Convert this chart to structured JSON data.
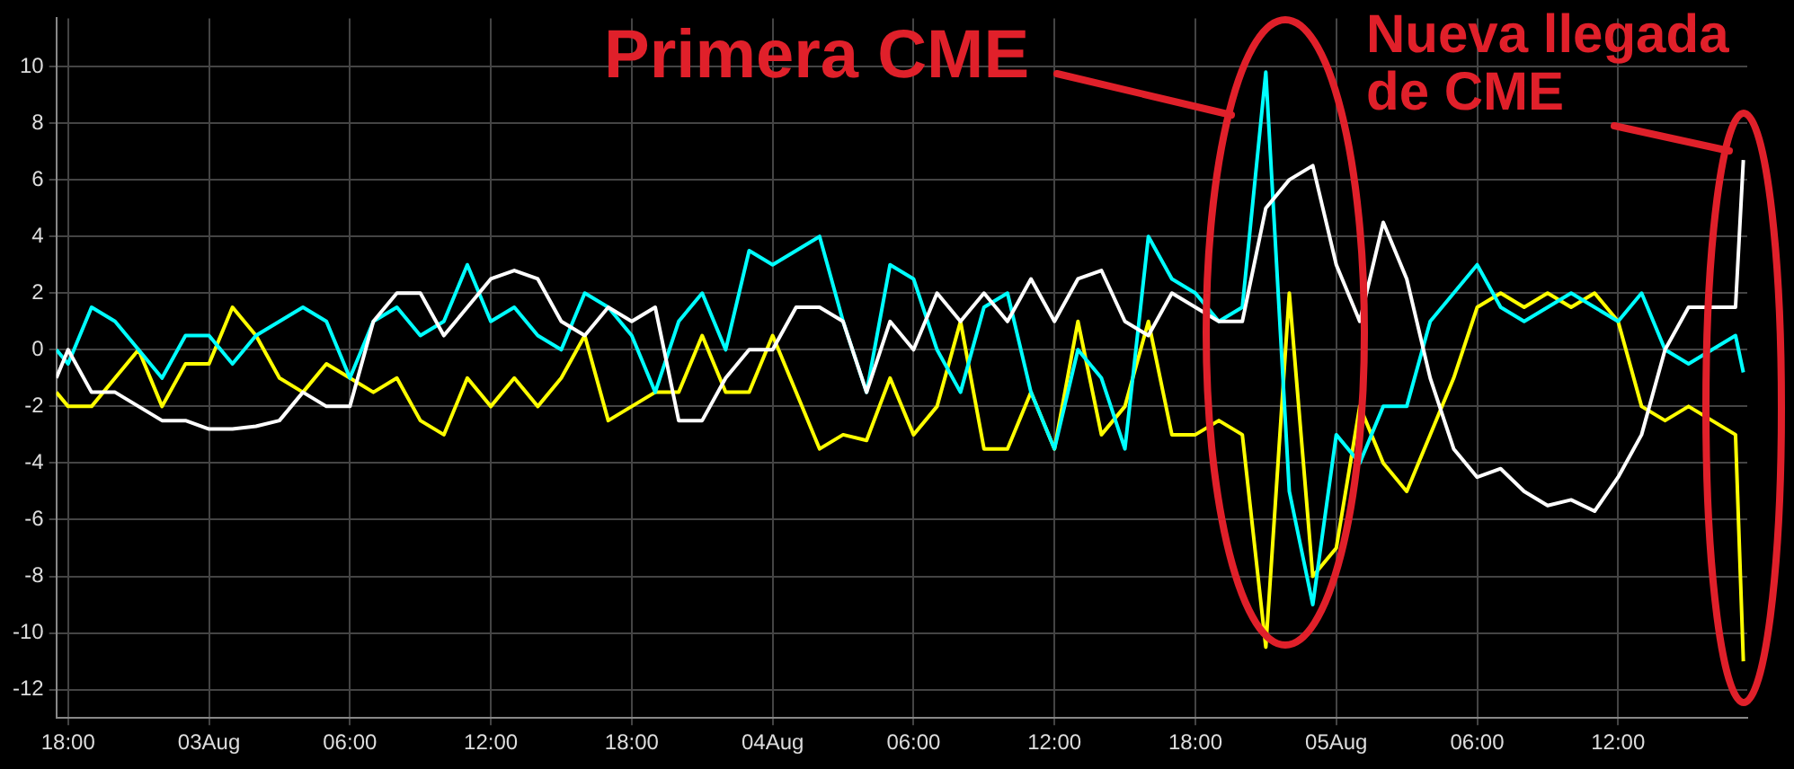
{
  "chart_data": {
    "type": "line",
    "annotations": [
      "Primera CME",
      "Nueva llegada de CME"
    ],
    "x": [
      "--08-02T17:30",
      "--08-02T18:00",
      "--08-02T19:00",
      "--08-02T20:00",
      "--08-02T21:00",
      "--08-02T22:00",
      "--08-02T23:00",
      "--08-03T00:00",
      "--08-03T01:00",
      "--08-03T02:00",
      "--08-03T03:00",
      "--08-03T04:00",
      "--08-03T05:00",
      "--08-03T06:00",
      "--08-03T07:00",
      "--08-03T08:00",
      "--08-03T09:00",
      "--08-03T10:00",
      "--08-03T11:00",
      "--08-03T12:00",
      "--08-03T13:00",
      "--08-03T14:00",
      "--08-03T15:00",
      "--08-03T16:00",
      "--08-03T17:00",
      "--08-03T18:00",
      "--08-03T19:00",
      "--08-03T20:00",
      "--08-03T21:00",
      "--08-03T22:00",
      "--08-03T23:00",
      "--08-04T00:00",
      "--08-04T01:00",
      "--08-04T02:00",
      "--08-04T03:00",
      "--08-04T04:00",
      "--08-04T05:00",
      "--08-04T06:00",
      "--08-04T07:00",
      "--08-04T08:00",
      "--08-04T09:00",
      "--08-04T10:00",
      "--08-04T11:00",
      "--08-04T12:00",
      "--08-04T13:00",
      "--08-04T14:00",
      "--08-04T15:00",
      "--08-04T16:00",
      "--08-04T17:00",
      "--08-04T18:00",
      "--08-04T19:00",
      "--08-04T20:00",
      "--08-04T21:00",
      "--08-04T22:00",
      "--08-04T23:00",
      "--08-05T00:00",
      "--08-05T01:00",
      "--08-05T02:00",
      "--08-05T03:00",
      "--08-05T04:00",
      "--08-05T05:00",
      "--08-05T06:00",
      "--08-05T07:00",
      "--08-05T08:00",
      "--08-05T09:00",
      "--08-05T10:00",
      "--08-05T11:00",
      "--08-05T12:00",
      "--08-05T13:00",
      "--08-05T14:00",
      "--08-05T15:00",
      "--08-05T16:00",
      "--08-05T17:00",
      "--08-05T17:20"
    ],
    "series": [
      {
        "color": "#ffffff",
        "values": [
          -1,
          0,
          -1.5,
          -1.5,
          -2,
          -2.5,
          -2.5,
          -2.8,
          -2.8,
          -2.7,
          -2.5,
          -1.5,
          -2,
          -2,
          1,
          2,
          2,
          0.5,
          1.5,
          2.5,
          2.8,
          2.5,
          1,
          0.5,
          1.5,
          1,
          1.5,
          -2.5,
          -2.5,
          -1,
          0,
          0,
          1.5,
          1.5,
          1,
          -1.5,
          1,
          0,
          2,
          1,
          2,
          1,
          2.5,
          1,
          2.5,
          2.8,
          1,
          0.5,
          2,
          1.5,
          1,
          1,
          5,
          6,
          6.5,
          3,
          1,
          4.5,
          2.5,
          -1,
          -3.5,
          -4.5,
          -4.2,
          -5,
          -5.5,
          -5.3,
          -5.7,
          -4.5,
          -3,
          0,
          1.5,
          1.5,
          1.5,
          6.7
        ]
      },
      {
        "color": "#00ffff",
        "values": [
          0,
          -0.5,
          1.5,
          1,
          0,
          -1,
          0.5,
          0.5,
          -0.5,
          0.5,
          1,
          1.5,
          1,
          -1,
          1,
          1.5,
          0.5,
          1,
          3,
          1,
          1.5,
          0.5,
          0,
          2,
          1.5,
          0.5,
          -1.5,
          1,
          2,
          0,
          3.5,
          3,
          3.5,
          4,
          1,
          -1.5,
          3,
          2.5,
          0,
          -1.5,
          1.5,
          2,
          -1.5,
          -3.5,
          0,
          -1,
          -3.5,
          4,
          2.5,
          2,
          1,
          1.5,
          9.8,
          -5,
          -9,
          -3,
          -4,
          -2,
          -2,
          1,
          2,
          3,
          1.5,
          1,
          1.5,
          2,
          1.5,
          1,
          2,
          0,
          -0.5,
          0,
          0.5,
          -0.8
        ]
      },
      {
        "color": "#ffff00",
        "values": [
          -1.5,
          -2,
          -2,
          -1,
          0,
          -2,
          -0.5,
          -0.5,
          1.5,
          0.5,
          -1,
          -1.5,
          -0.5,
          -1,
          -1.5,
          -1,
          -2.5,
          -3,
          -1,
          -2,
          -1,
          -2,
          -1,
          0.5,
          -2.5,
          -2,
          -1.5,
          -1.5,
          0.5,
          -1.5,
          -1.5,
          0.5,
          -1.5,
          -3.5,
          -3,
          -3.2,
          -1,
          -3,
          -2,
          1,
          -3.5,
          -3.5,
          -1.5,
          -3.5,
          1,
          -3,
          -2,
          1,
          -3,
          -3,
          -2.5,
          -3,
          -10.5,
          2,
          -8,
          -7,
          -2,
          -4,
          -5,
          -3,
          -1,
          1.5,
          2,
          1.5,
          2,
          1.5,
          2,
          1,
          -2,
          -2.5,
          -2,
          -2.5,
          -3,
          -11
        ]
      }
    ],
    "xlim": [
      "--08-02T17:30",
      "--08-05T17:30"
    ],
    "xticks": [
      {
        "value": "--08-02T18:00",
        "label": "18:00"
      },
      {
        "value": "--08-03T00:00",
        "label": "03Aug"
      },
      {
        "value": "--08-03T06:00",
        "label": "06:00"
      },
      {
        "value": "--08-03T12:00",
        "label": "12:00"
      },
      {
        "value": "--08-03T18:00",
        "label": "18:00"
      },
      {
        "value": "--08-04T00:00",
        "label": "04Aug"
      },
      {
        "value": "--08-04T06:00",
        "label": "06:00"
      },
      {
        "value": "--08-04T12:00",
        "label": "12:00"
      },
      {
        "value": "--08-04T18:00",
        "label": "18:00"
      },
      {
        "value": "--08-05T00:00",
        "label": "05Aug"
      },
      {
        "value": "--08-05T06:00",
        "label": "06:00"
      },
      {
        "value": "--08-05T12:00",
        "label": "12:00"
      }
    ],
    "ylim": [
      -13,
      11.7
    ],
    "yticks": [
      -12,
      -10,
      -8,
      -6,
      -4,
      -2,
      0,
      2,
      4,
      6,
      8,
      10
    ],
    "grid": true,
    "legend": false,
    "marker": "none",
    "line_style": "solid"
  }
}
